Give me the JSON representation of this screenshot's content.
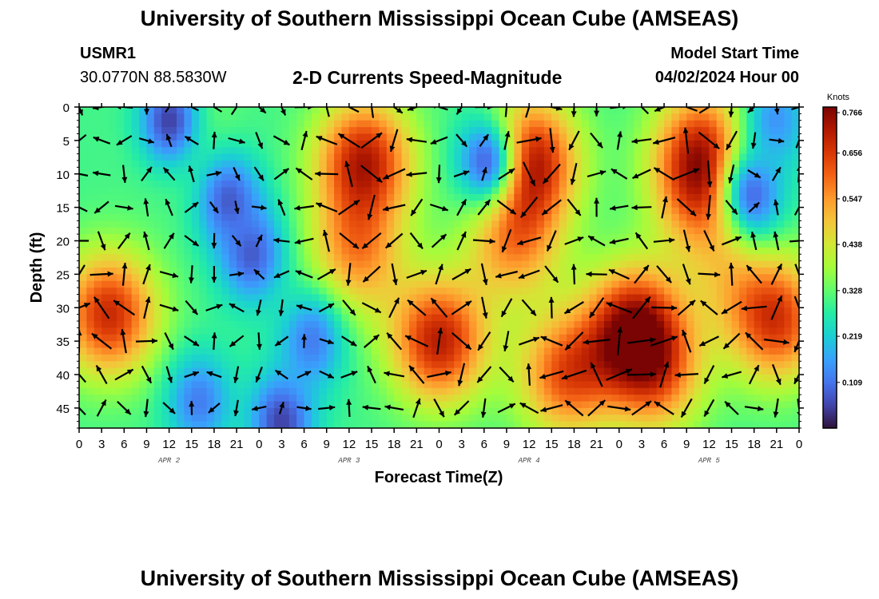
{
  "title_top": "University of Southern Mississippi Ocean Cube (AMSEAS)",
  "title_bottom": "University of Southern Mississippi Ocean Cube (AMSEAS)",
  "station": {
    "id": "USMR1",
    "coords": "30.0770N  88.5830W"
  },
  "model_start": {
    "label": "Model Start Time",
    "value": "04/02/2024 Hour 00"
  },
  "chart_data": {
    "type": "heatmap",
    "title": "2-D Currents Speed-Magnitude",
    "xlabel": "Forecast Time(Z)",
    "ylabel": "Depth (ft)",
    "x_ticks": [
      "0",
      "3",
      "6",
      "9",
      "12",
      "15",
      "18",
      "21",
      "0",
      "3",
      "6",
      "9",
      "12",
      "15",
      "18",
      "21",
      "0",
      "3",
      "6",
      "9",
      "12",
      "15",
      "18",
      "21",
      "0",
      "3",
      "6",
      "9",
      "12",
      "15",
      "18",
      "21",
      "0"
    ],
    "x_range_hours": [
      0,
      96
    ],
    "day_labels": [
      {
        "label": "APR 2",
        "hour": 12
      },
      {
        "label": "APR 3",
        "hour": 36
      },
      {
        "label": "APR 4",
        "hour": 60
      },
      {
        "label": "APR 5",
        "hour": 84
      }
    ],
    "y_ticks": [
      0,
      5,
      10,
      15,
      20,
      25,
      30,
      35,
      40,
      45
    ],
    "y_range_ft": [
      0,
      48
    ],
    "y_inverted": true,
    "colorbar": {
      "title": "Knots",
      "ticks": [
        "0.109",
        "0.219",
        "0.328",
        "0.438",
        "0.547",
        "0.656",
        "0.766"
      ],
      "range": [
        0.0,
        0.766
      ],
      "colors": [
        "#30123b",
        "#4145ab",
        "#4675ed",
        "#39a2fc",
        "#1bcfd4",
        "#24eca6",
        "#61fc6c",
        "#a4fc3b",
        "#d1e834",
        "#f3c63a",
        "#fe9b2d",
        "#f36315",
        "#d93806",
        "#b11901",
        "#7a0403"
      ]
    },
    "speed_features": [
      {
        "t": 4,
        "d": 31,
        "v": 0.68
      },
      {
        "t": 38,
        "d": 8,
        "v": 0.7
      },
      {
        "t": 37,
        "d": 22,
        "v": 0.55
      },
      {
        "t": 60,
        "d": 8,
        "v": 0.72
      },
      {
        "t": 58,
        "d": 20,
        "v": 0.55
      },
      {
        "t": 83,
        "d": 6,
        "v": 0.6
      },
      {
        "t": 83,
        "d": 13,
        "v": 0.55
      },
      {
        "t": 48,
        "d": 35,
        "v": 0.7
      },
      {
        "t": 65,
        "d": 40,
        "v": 0.62
      },
      {
        "t": 74,
        "d": 33,
        "v": 0.72
      },
      {
        "t": 77,
        "d": 40,
        "v": 0.55
      },
      {
        "t": 93,
        "d": 32,
        "v": 0.65
      },
      {
        "t": 14,
        "d": 3,
        "v": 0.38
      },
      {
        "t": 87,
        "d": 25,
        "v": 0.42
      }
    ],
    "low_features": [
      {
        "t": 12,
        "d": 2,
        "v": 0.05
      },
      {
        "t": 27,
        "d": 47,
        "v": 0.05
      },
      {
        "t": 23,
        "d": 22,
        "v": 0.08
      },
      {
        "t": 20,
        "d": 14,
        "v": 0.08
      },
      {
        "t": 90,
        "d": 13,
        "v": 0.1
      },
      {
        "t": 54,
        "d": 8,
        "v": 0.1
      },
      {
        "t": 31,
        "d": 35,
        "v": 0.12
      },
      {
        "t": 16,
        "d": 44,
        "v": 0.12
      },
      {
        "t": 93,
        "d": 2,
        "v": 0.15
      }
    ],
    "vector_times_hours": [
      0,
      3,
      6,
      9,
      12,
      15,
      18,
      21,
      24,
      27,
      30,
      33,
      36,
      39,
      42,
      45,
      48,
      51,
      54,
      57,
      60,
      63,
      66,
      69,
      72,
      75,
      78,
      81,
      84,
      87,
      90,
      93,
      96
    ],
    "vector_depths_ft": [
      0,
      5,
      10,
      15,
      20,
      25,
      30,
      35,
      40,
      45
    ]
  }
}
